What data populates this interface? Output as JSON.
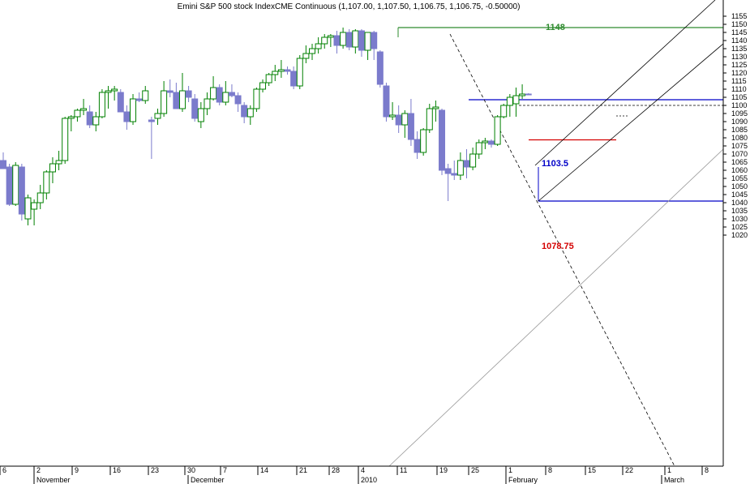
{
  "title": "Emini S&P 500 stock IndexCME Continuous (1,107.00, 1,107.50, 1,106.75, 1,106.75, -0.50000)",
  "colors": {
    "up_candle": "#008000",
    "down_candle": "#7b7bcc",
    "annotation_1148": "#2e8b2e",
    "annotation_1103_5": "#0000c8",
    "annotation_1078_75": "#d40000",
    "trendline": "#000000",
    "axis": "#000000"
  },
  "chart_data": {
    "type": "candlestick",
    "title": "Emini S&P 500 stock IndexCME Continuous (1,107.00, 1,107.50, 1,106.75, 1,106.75, -0.50000)",
    "ylim": [
      1015,
      1160
    ],
    "y_ticks": [
      1020,
      1025,
      1030,
      1035,
      1040,
      1045,
      1050,
      1055,
      1060,
      1065,
      1070,
      1075,
      1080,
      1085,
      1090,
      1095,
      1100,
      1105,
      1110,
      1115,
      1120,
      1125,
      1130,
      1135,
      1140,
      1145,
      1150,
      1155
    ],
    "x_ticks": [
      "6",
      "2",
      "9",
      "16",
      "23",
      "30",
      "7",
      "14",
      "21",
      "28",
      "4",
      "11",
      "19",
      "25",
      "1",
      "8",
      "15",
      "22",
      "1",
      "8"
    ],
    "x_months": [
      "November",
      "December",
      "2010",
      "February",
      "March"
    ],
    "grid": false,
    "candles": [
      {
        "o": 1066,
        "h": 1071,
        "l": 1061,
        "c": 1061
      },
      {
        "o": 1062,
        "h": 1064,
        "l": 1038,
        "c": 1039
      },
      {
        "o": 1039,
        "h": 1065,
        "l": 1038,
        "c": 1063
      },
      {
        "o": 1062,
        "h": 1064,
        "l": 1029,
        "c": 1033
      },
      {
        "o": 1030,
        "h": 1045,
        "l": 1026,
        "c": 1043
      },
      {
        "o": 1036,
        "h": 1042,
        "l": 1026,
        "c": 1040
      },
      {
        "o": 1040,
        "h": 1051,
        "l": 1036,
        "c": 1046
      },
      {
        "o": 1046,
        "h": 1060,
        "l": 1042,
        "c": 1059
      },
      {
        "o": 1059,
        "h": 1068,
        "l": 1052,
        "c": 1064
      },
      {
        "o": 1064,
        "h": 1072,
        "l": 1060,
        "c": 1066
      },
      {
        "o": 1066,
        "h": 1093,
        "l": 1064,
        "c": 1092
      },
      {
        "o": 1092,
        "h": 1094,
        "l": 1084,
        "c": 1093
      },
      {
        "o": 1093,
        "h": 1098,
        "l": 1090,
        "c": 1097
      },
      {
        "o": 1097,
        "h": 1104,
        "l": 1094,
        "c": 1098
      },
      {
        "o": 1096,
        "h": 1100,
        "l": 1086,
        "c": 1088
      },
      {
        "o": 1088,
        "h": 1096,
        "l": 1084,
        "c": 1093
      },
      {
        "o": 1093,
        "h": 1110,
        "l": 1092,
        "c": 1108
      },
      {
        "o": 1108,
        "h": 1112,
        "l": 1098,
        "c": 1109
      },
      {
        "o": 1109,
        "h": 1112,
        "l": 1103,
        "c": 1110
      },
      {
        "o": 1108,
        "h": 1110,
        "l": 1096,
        "c": 1096
      },
      {
        "o": 1096,
        "h": 1100,
        "l": 1085,
        "c": 1090
      },
      {
        "o": 1090,
        "h": 1107,
        "l": 1088,
        "c": 1104
      },
      {
        "o": 1104,
        "h": 1108,
        "l": 1102,
        "c": 1103
      },
      {
        "o": 1103,
        "h": 1112,
        "l": 1101,
        "c": 1109
      },
      {
        "o": 1091,
        "h": 1093,
        "l": 1067,
        "c": 1090
      },
      {
        "o": 1092,
        "h": 1098,
        "l": 1088,
        "c": 1095
      },
      {
        "o": 1095,
        "h": 1115,
        "l": 1093,
        "c": 1109
      },
      {
        "o": 1109,
        "h": 1116,
        "l": 1105,
        "c": 1108
      },
      {
        "o": 1108,
        "h": 1114,
        "l": 1098,
        "c": 1098
      },
      {
        "o": 1098,
        "h": 1120,
        "l": 1096,
        "c": 1109
      },
      {
        "o": 1109,
        "h": 1112,
        "l": 1102,
        "c": 1105
      },
      {
        "o": 1104,
        "h": 1107,
        "l": 1090,
        "c": 1092
      },
      {
        "o": 1090,
        "h": 1102,
        "l": 1086,
        "c": 1098
      },
      {
        "o": 1098,
        "h": 1108,
        "l": 1094,
        "c": 1104
      },
      {
        "o": 1104,
        "h": 1118,
        "l": 1103,
        "c": 1111
      },
      {
        "o": 1111,
        "h": 1113,
        "l": 1100,
        "c": 1102
      },
      {
        "o": 1102,
        "h": 1115,
        "l": 1100,
        "c": 1108
      },
      {
        "o": 1108,
        "h": 1113,
        "l": 1105,
        "c": 1106
      },
      {
        "o": 1106,
        "h": 1108,
        "l": 1096,
        "c": 1101
      },
      {
        "o": 1100,
        "h": 1102,
        "l": 1089,
        "c": 1093
      },
      {
        "o": 1093,
        "h": 1100,
        "l": 1088,
        "c": 1098
      },
      {
        "o": 1098,
        "h": 1111,
        "l": 1096,
        "c": 1110
      },
      {
        "o": 1110,
        "h": 1116,
        "l": 1108,
        "c": 1114
      },
      {
        "o": 1114,
        "h": 1120,
        "l": 1112,
        "c": 1119
      },
      {
        "o": 1119,
        "h": 1125,
        "l": 1115,
        "c": 1121
      },
      {
        "o": 1121,
        "h": 1128,
        "l": 1117,
        "c": 1122
      },
      {
        "o": 1122,
        "h": 1124,
        "l": 1119,
        "c": 1121
      },
      {
        "o": 1121,
        "h": 1124,
        "l": 1110,
        "c": 1112
      },
      {
        "o": 1112,
        "h": 1131,
        "l": 1110,
        "c": 1129
      },
      {
        "o": 1129,
        "h": 1137,
        "l": 1126,
        "c": 1132
      },
      {
        "o": 1132,
        "h": 1138,
        "l": 1128,
        "c": 1135
      },
      {
        "o": 1135,
        "h": 1142,
        "l": 1132,
        "c": 1138
      },
      {
        "o": 1138,
        "h": 1144,
        "l": 1135,
        "c": 1142
      },
      {
        "o": 1142,
        "h": 1144,
        "l": 1136,
        "c": 1143
      },
      {
        "o": 1143,
        "h": 1146,
        "l": 1132,
        "c": 1137
      },
      {
        "o": 1137,
        "h": 1148,
        "l": 1135,
        "c": 1145
      },
      {
        "o": 1145,
        "h": 1147,
        "l": 1134,
        "c": 1136
      },
      {
        "o": 1136,
        "h": 1147,
        "l": 1132,
        "c": 1146
      },
      {
        "o": 1146,
        "h": 1147,
        "l": 1130,
        "c": 1134
      },
      {
        "o": 1134,
        "h": 1144,
        "l": 1128,
        "c": 1145
      },
      {
        "o": 1145,
        "h": 1146,
        "l": 1128,
        "c": 1135
      },
      {
        "o": 1133,
        "h": 1134,
        "l": 1111,
        "c": 1113
      },
      {
        "o": 1112,
        "h": 1114,
        "l": 1090,
        "c": 1093
      },
      {
        "o": 1093,
        "h": 1102,
        "l": 1091,
        "c": 1094
      },
      {
        "o": 1094,
        "h": 1100,
        "l": 1083,
        "c": 1088
      },
      {
        "o": 1088,
        "h": 1097,
        "l": 1080,
        "c": 1095
      },
      {
        "o": 1095,
        "h": 1104,
        "l": 1075,
        "c": 1079
      },
      {
        "o": 1079,
        "h": 1084,
        "l": 1067,
        "c": 1071
      },
      {
        "o": 1071,
        "h": 1086,
        "l": 1069,
        "c": 1085
      },
      {
        "o": 1085,
        "h": 1101,
        "l": 1083,
        "c": 1098
      },
      {
        "o": 1098,
        "h": 1103,
        "l": 1090,
        "c": 1099
      },
      {
        "o": 1097,
        "h": 1098,
        "l": 1057,
        "c": 1060
      },
      {
        "o": 1061,
        "h": 1064,
        "l": 1041,
        "c": 1058
      },
      {
        "o": 1058,
        "h": 1066,
        "l": 1054,
        "c": 1057
      },
      {
        "o": 1057,
        "h": 1071,
        "l": 1054,
        "c": 1066
      },
      {
        "o": 1066,
        "h": 1073,
        "l": 1055,
        "c": 1062
      },
      {
        "o": 1062,
        "h": 1074,
        "l": 1060,
        "c": 1070
      },
      {
        "o": 1070,
        "h": 1079,
        "l": 1067,
        "c": 1077
      },
      {
        "o": 1077,
        "h": 1080,
        "l": 1073,
        "c": 1078
      },
      {
        "o": 1078,
        "h": 1079,
        "l": 1074,
        "c": 1076
      },
      {
        "o": 1076,
        "h": 1094,
        "l": 1075,
        "c": 1093
      },
      {
        "o": 1093,
        "h": 1101,
        "l": 1092,
        "c": 1100
      },
      {
        "o": 1100,
        "h": 1107,
        "l": 1093,
        "c": 1105
      },
      {
        "o": 1101,
        "h": 1111,
        "l": 1093,
        "c": 1106
      },
      {
        "o": 1106,
        "h": 1113,
        "l": 1104,
        "c": 1107
      },
      {
        "o": 1107,
        "h": 1107.5,
        "l": 1106.75,
        "c": 1106.75
      }
    ],
    "annotations": [
      {
        "label": "1148",
        "price": 1148
      },
      {
        "label": "1103.5",
        "price": 1103.5
      },
      {
        "label": "1078.75",
        "price": 1078.75
      }
    ]
  }
}
